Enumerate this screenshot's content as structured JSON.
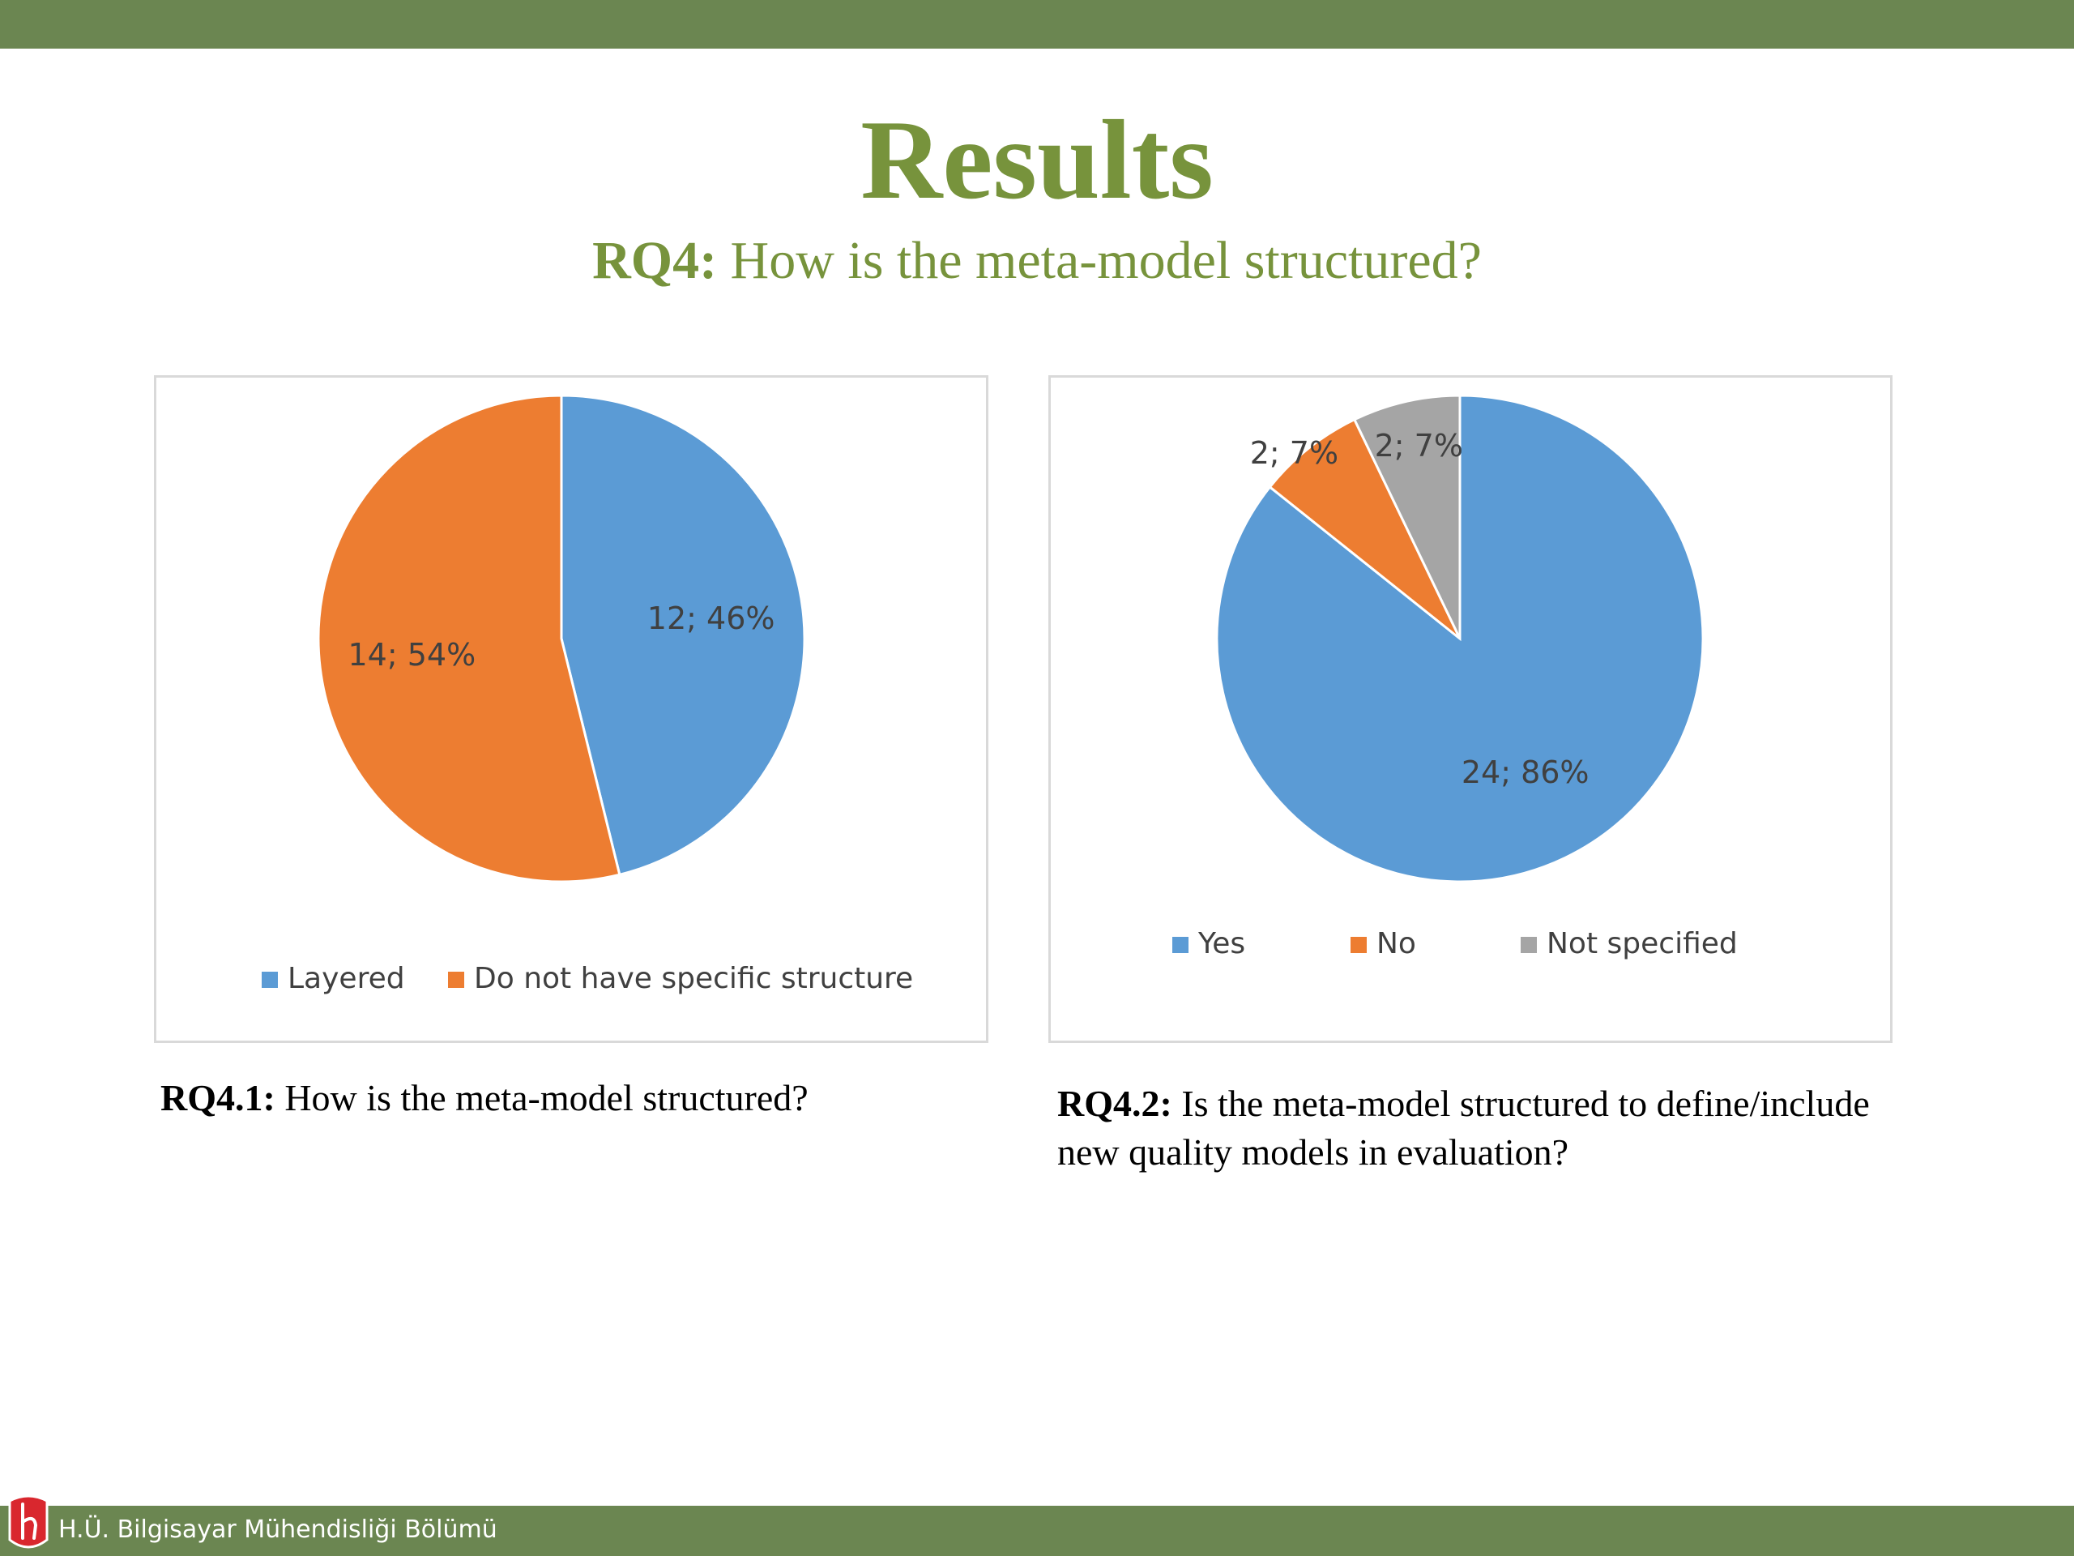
{
  "slide": {
    "title": "Results",
    "subtitle_bold": "RQ4:",
    "subtitle_text": " How is the meta-model structured?",
    "footer_text": "H.Ü. Bilgisayar Mühendisliği Bölümü"
  },
  "colors": {
    "bar": "#6b8651",
    "title": "#77933c",
    "footer_logo": "#d9272e"
  },
  "captions": {
    "rq41_bold": "RQ4.1:",
    "rq41_text": " How is the meta-model structured?",
    "rq42_bold": "RQ4.2:",
    "rq42_text": " Is the meta-model structured to define/include new quality models in evaluation?"
  },
  "chart_data": [
    {
      "type": "pie",
      "title": "",
      "start_angle_deg": 0,
      "direction": "clockwise",
      "legend_position": "bottom",
      "categories": [
        "Layered",
        "Do not have specific structure"
      ],
      "values": [
        12,
        14
      ],
      "percents": [
        46,
        54
      ],
      "data_labels": [
        "12; 46%",
        "14; 54%"
      ],
      "colors": [
        "#5b9bd5",
        "#ed7d31"
      ]
    },
    {
      "type": "pie",
      "title": "",
      "start_angle_deg": 0,
      "direction": "clockwise",
      "legend_position": "bottom",
      "categories": [
        "Yes",
        "No",
        "Not specified"
      ],
      "values": [
        24,
        2,
        2
      ],
      "percents": [
        86,
        7,
        7
      ],
      "data_labels": [
        "24; 86%",
        "2; 7%",
        "2; 7%"
      ],
      "colors": [
        "#5b9bd5",
        "#ed7d31",
        "#a5a5a5"
      ]
    }
  ]
}
